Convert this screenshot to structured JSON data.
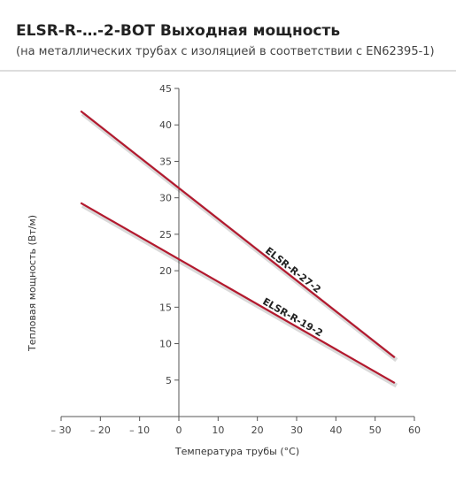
{
  "chart_data": {
    "type": "line",
    "title": "ELSR-R-…-2-BOT Выходная мощность",
    "subtitle": "(на металлических трубах с изоляцией в соответствии с EN62395-1)",
    "x_label": "Температура трубы (°C)",
    "y_label": "Тепловая мощность (Вт/м)",
    "x": [
      -25,
      55
    ],
    "series": [
      {
        "name": "ELSR-R-27-2",
        "color": "#b3192e",
        "values": [
          41.9,
          8.1
        ]
      },
      {
        "name": "ELSR-R-19-2",
        "color": "#b3192e",
        "values": [
          29.3,
          4.6
        ]
      }
    ],
    "xlim": [
      -30,
      60
    ],
    "ylim": [
      0,
      45
    ],
    "xticks": [
      {
        "value": -30,
        "label": "– 30"
      },
      {
        "value": -20,
        "label": "– 20"
      },
      {
        "value": -10,
        "label": "– 10"
      },
      0,
      10,
      20,
      30,
      40,
      50,
      60
    ],
    "yticks": [
      5,
      10,
      15,
      20,
      25,
      30,
      35,
      40,
      45
    ],
    "grid": false
  }
}
